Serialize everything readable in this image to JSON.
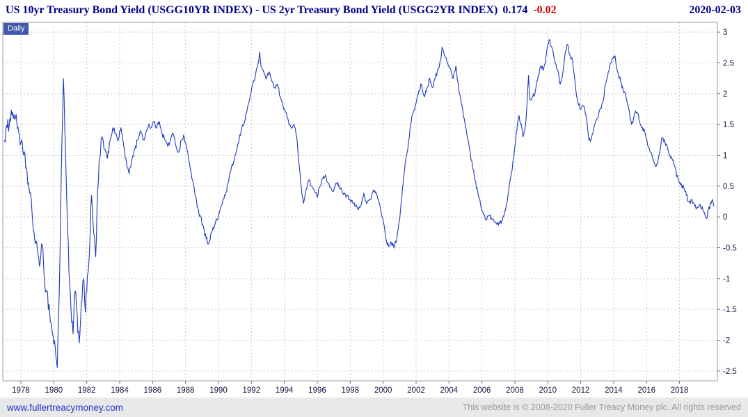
{
  "header": {
    "title": "US 10yr Treasury Bond Yield (USGG10YR INDEX) - US 2yr Treasury Bond Yield (USGG2YR INDEX)",
    "last_value": "0.174",
    "change": "-0.02",
    "date": "2020-02-03"
  },
  "chart": {
    "frequency_label": "Daily"
  },
  "footer": {
    "link": "www.fullertreacymoney.com",
    "copyright": "This website is © 2008-2020 Fuller Treacy Money plc. All rights reserved"
  },
  "colors": {
    "line": "#1c39bb",
    "title": "#00008b",
    "change_negative": "#d40000",
    "grid": "#c9c9c9",
    "axis_text": "#15153f",
    "tick": "#666666",
    "plot_border": "#9aa0a6",
    "badge_bg": "#3d59a8",
    "footer_bg": "#e8e8e8",
    "footer_text": "#9b9b9b",
    "footer_link": "#2233cc"
  },
  "chart_data": {
    "type": "line",
    "title": "US 10yr Treasury Bond Yield (USGG10YR INDEX) - US 2yr Treasury Bond Yield (USGG2YR INDEX)",
    "frequency": "Daily",
    "xlabel": "",
    "ylabel": "",
    "grid": true,
    "legend": "none",
    "x_unit": "year",
    "x_range": [
      1977,
      2020.1
    ],
    "y_range": [
      -2.5,
      3
    ],
    "y_ticks": [
      3,
      2.5,
      2,
      1.5,
      1,
      0.5,
      0,
      -0.5,
      -1,
      -1.5,
      -2,
      -2.5
    ],
    "x_ticks": [
      1978,
      1980,
      1982,
      1984,
      1986,
      1988,
      1990,
      1992,
      1994,
      1996,
      1998,
      2000,
      2002,
      2004,
      2006,
      2008,
      2010,
      2012,
      2014,
      2016,
      2018
    ],
    "last_point": {
      "x": 2020.09,
      "y": 0.174
    },
    "series": [
      {
        "name": "US 10yr minus US 2yr Treasury yield spread",
        "points": [
          [
            1977.0,
            1.25
          ],
          [
            1977.17,
            1.45
          ],
          [
            1977.33,
            1.6
          ],
          [
            1977.5,
            1.7
          ],
          [
            1977.67,
            1.6
          ],
          [
            1977.83,
            1.45
          ],
          [
            1978.0,
            1.2
          ],
          [
            1978.17,
            1.0
          ],
          [
            1978.33,
            0.8
          ],
          [
            1978.5,
            0.45
          ],
          [
            1978.67,
            0.1
          ],
          [
            1978.83,
            -0.35
          ],
          [
            1979.0,
            -0.55
          ],
          [
            1979.17,
            -0.75
          ],
          [
            1979.29,
            -0.45
          ],
          [
            1979.42,
            -1.0
          ],
          [
            1979.58,
            -1.2
          ],
          [
            1979.75,
            -1.55
          ],
          [
            1979.92,
            -1.9
          ],
          [
            1980.08,
            -2.1
          ],
          [
            1980.21,
            -2.45
          ],
          [
            1980.33,
            -1.2
          ],
          [
            1980.46,
            0.8
          ],
          [
            1980.58,
            2.25
          ],
          [
            1980.67,
            1.4
          ],
          [
            1980.79,
            0.2
          ],
          [
            1980.92,
            -0.9
          ],
          [
            1981.04,
            -1.5
          ],
          [
            1981.17,
            -1.9
          ],
          [
            1981.29,
            -1.2
          ],
          [
            1981.42,
            -1.6
          ],
          [
            1981.54,
            -2.05
          ],
          [
            1981.67,
            -1.4
          ],
          [
            1981.79,
            -1.0
          ],
          [
            1981.92,
            -1.55
          ],
          [
            1982.04,
            -0.95
          ],
          [
            1982.17,
            -0.55
          ],
          [
            1982.29,
            0.35
          ],
          [
            1982.42,
            -0.25
          ],
          [
            1982.54,
            -0.65
          ],
          [
            1982.67,
            0.45
          ],
          [
            1982.79,
            0.95
          ],
          [
            1982.92,
            1.3
          ],
          [
            1983.08,
            1.1
          ],
          [
            1983.25,
            0.95
          ],
          [
            1983.42,
            1.25
          ],
          [
            1983.58,
            1.45
          ],
          [
            1983.75,
            1.35
          ],
          [
            1983.92,
            1.25
          ],
          [
            1984.08,
            1.45
          ],
          [
            1984.25,
            1.15
          ],
          [
            1984.42,
            0.85
          ],
          [
            1984.58,
            0.7
          ],
          [
            1984.75,
            0.95
          ],
          [
            1984.92,
            1.1
          ],
          [
            1985.08,
            1.25
          ],
          [
            1985.25,
            1.4
          ],
          [
            1985.42,
            1.25
          ],
          [
            1985.58,
            1.35
          ],
          [
            1985.75,
            1.5
          ],
          [
            1985.92,
            1.45
          ],
          [
            1986.08,
            1.55
          ],
          [
            1986.25,
            1.45
          ],
          [
            1986.42,
            1.55
          ],
          [
            1986.58,
            1.35
          ],
          [
            1986.75,
            1.25
          ],
          [
            1986.92,
            1.15
          ],
          [
            1987.08,
            1.25
          ],
          [
            1987.25,
            1.35
          ],
          [
            1987.42,
            1.15
          ],
          [
            1987.58,
            1.05
          ],
          [
            1987.75,
            1.25
          ],
          [
            1987.92,
            1.3
          ],
          [
            1988.08,
            1.1
          ],
          [
            1988.25,
            0.85
          ],
          [
            1988.42,
            0.6
          ],
          [
            1988.58,
            0.35
          ],
          [
            1988.75,
            0.15
          ],
          [
            1988.92,
            0.0
          ],
          [
            1989.08,
            -0.15
          ],
          [
            1989.25,
            -0.35
          ],
          [
            1989.42,
            -0.42
          ],
          [
            1989.58,
            -0.25
          ],
          [
            1989.75,
            -0.15
          ],
          [
            1989.92,
            -0.05
          ],
          [
            1990.08,
            0.1
          ],
          [
            1990.25,
            0.25
          ],
          [
            1990.42,
            0.35
          ],
          [
            1990.58,
            0.55
          ],
          [
            1990.75,
            0.75
          ],
          [
            1990.92,
            0.9
          ],
          [
            1991.08,
            1.05
          ],
          [
            1991.25,
            1.25
          ],
          [
            1991.42,
            1.45
          ],
          [
            1991.58,
            1.55
          ],
          [
            1991.75,
            1.75
          ],
          [
            1991.92,
            1.95
          ],
          [
            1992.08,
            2.15
          ],
          [
            1992.25,
            2.3
          ],
          [
            1992.42,
            2.5
          ],
          [
            1992.5,
            2.68
          ],
          [
            1992.58,
            2.45
          ],
          [
            1992.75,
            2.35
          ],
          [
            1992.92,
            2.25
          ],
          [
            1993.08,
            2.35
          ],
          [
            1993.25,
            2.2
          ],
          [
            1993.42,
            2.1
          ],
          [
            1993.58,
            2.15
          ],
          [
            1993.75,
            1.95
          ],
          [
            1993.92,
            1.8
          ],
          [
            1994.08,
            1.7
          ],
          [
            1994.25,
            1.55
          ],
          [
            1994.42,
            1.45
          ],
          [
            1994.58,
            1.5
          ],
          [
            1994.75,
            1.3
          ],
          [
            1994.92,
            0.8
          ],
          [
            1995.08,
            0.35
          ],
          [
            1995.17,
            0.22
          ],
          [
            1995.33,
            0.45
          ],
          [
            1995.5,
            0.6
          ],
          [
            1995.67,
            0.5
          ],
          [
            1995.83,
            0.42
          ],
          [
            1996.0,
            0.32
          ],
          [
            1996.17,
            0.5
          ],
          [
            1996.33,
            0.62
          ],
          [
            1996.5,
            0.68
          ],
          [
            1996.67,
            0.55
          ],
          [
            1996.83,
            0.48
          ],
          [
            1997.0,
            0.42
          ],
          [
            1997.17,
            0.55
          ],
          [
            1997.33,
            0.5
          ],
          [
            1997.5,
            0.42
          ],
          [
            1997.67,
            0.38
          ],
          [
            1997.83,
            0.35
          ],
          [
            1998.0,
            0.28
          ],
          [
            1998.17,
            0.22
          ],
          [
            1998.33,
            0.18
          ],
          [
            1998.5,
            0.12
          ],
          [
            1998.67,
            0.2
          ],
          [
            1998.83,
            0.38
          ],
          [
            1999.0,
            0.22
          ],
          [
            1999.17,
            0.28
          ],
          [
            1999.33,
            0.38
          ],
          [
            1999.5,
            0.42
          ],
          [
            1999.67,
            0.3
          ],
          [
            1999.83,
            0.15
          ],
          [
            2000.0,
            -0.05
          ],
          [
            2000.17,
            -0.35
          ],
          [
            2000.33,
            -0.48
          ],
          [
            2000.5,
            -0.42
          ],
          [
            2000.67,
            -0.5
          ],
          [
            2000.83,
            -0.35
          ],
          [
            2001.0,
            -0.05
          ],
          [
            2001.17,
            0.45
          ],
          [
            2001.33,
            0.85
          ],
          [
            2001.5,
            1.1
          ],
          [
            2001.67,
            1.5
          ],
          [
            2001.83,
            1.7
          ],
          [
            2002.0,
            1.85
          ],
          [
            2002.17,
            2.05
          ],
          [
            2002.33,
            2.15
          ],
          [
            2002.5,
            1.95
          ],
          [
            2002.67,
            2.1
          ],
          [
            2002.83,
            2.25
          ],
          [
            2003.0,
            2.1
          ],
          [
            2003.17,
            2.25
          ],
          [
            2003.33,
            2.4
          ],
          [
            2003.5,
            2.55
          ],
          [
            2003.58,
            2.75
          ],
          [
            2003.75,
            2.6
          ],
          [
            2003.92,
            2.5
          ],
          [
            2004.08,
            2.4
          ],
          [
            2004.25,
            2.25
          ],
          [
            2004.42,
            2.45
          ],
          [
            2004.58,
            2.1
          ],
          [
            2004.75,
            1.85
          ],
          [
            2004.92,
            1.6
          ],
          [
            2005.08,
            1.35
          ],
          [
            2005.25,
            1.1
          ],
          [
            2005.42,
            0.85
          ],
          [
            2005.58,
            0.6
          ],
          [
            2005.75,
            0.4
          ],
          [
            2005.92,
            0.2
          ],
          [
            2006.08,
            0.05
          ],
          [
            2006.25,
            -0.05
          ],
          [
            2006.42,
            0.02
          ],
          [
            2006.58,
            -0.02
          ],
          [
            2006.75,
            -0.08
          ],
          [
            2006.92,
            -0.12
          ],
          [
            2007.08,
            -0.1
          ],
          [
            2007.25,
            -0.05
          ],
          [
            2007.42,
            0.1
          ],
          [
            2007.58,
            0.35
          ],
          [
            2007.75,
            0.65
          ],
          [
            2007.92,
            0.95
          ],
          [
            2008.08,
            1.35
          ],
          [
            2008.25,
            1.65
          ],
          [
            2008.42,
            1.45
          ],
          [
            2008.5,
            1.3
          ],
          [
            2008.67,
            1.55
          ],
          [
            2008.83,
            2.3
          ],
          [
            2008.92,
            1.9
          ],
          [
            2009.08,
            1.95
          ],
          [
            2009.25,
            2.05
          ],
          [
            2009.42,
            2.3
          ],
          [
            2009.58,
            2.45
          ],
          [
            2009.75,
            2.4
          ],
          [
            2009.92,
            2.65
          ],
          [
            2010.0,
            2.8
          ],
          [
            2010.08,
            2.88
          ],
          [
            2010.25,
            2.75
          ],
          [
            2010.42,
            2.55
          ],
          [
            2010.58,
            2.4
          ],
          [
            2010.75,
            2.15
          ],
          [
            2010.92,
            2.35
          ],
          [
            2011.08,
            2.7
          ],
          [
            2011.17,
            2.8
          ],
          [
            2011.33,
            2.65
          ],
          [
            2011.5,
            2.55
          ],
          [
            2011.67,
            2.15
          ],
          [
            2011.83,
            1.85
          ],
          [
            2012.0,
            1.75
          ],
          [
            2012.17,
            1.8
          ],
          [
            2012.33,
            1.65
          ],
          [
            2012.5,
            1.25
          ],
          [
            2012.67,
            1.3
          ],
          [
            2012.83,
            1.5
          ],
          [
            2013.0,
            1.6
          ],
          [
            2013.17,
            1.75
          ],
          [
            2013.33,
            1.85
          ],
          [
            2013.5,
            2.15
          ],
          [
            2013.67,
            2.35
          ],
          [
            2013.83,
            2.5
          ],
          [
            2014.0,
            2.6
          ],
          [
            2014.08,
            2.62
          ],
          [
            2014.25,
            2.35
          ],
          [
            2014.42,
            2.2
          ],
          [
            2014.58,
            2.05
          ],
          [
            2014.75,
            1.95
          ],
          [
            2014.92,
            1.75
          ],
          [
            2015.08,
            1.5
          ],
          [
            2015.25,
            1.65
          ],
          [
            2015.42,
            1.7
          ],
          [
            2015.58,
            1.55
          ],
          [
            2015.75,
            1.45
          ],
          [
            2015.92,
            1.35
          ],
          [
            2016.08,
            1.15
          ],
          [
            2016.25,
            1.05
          ],
          [
            2016.42,
            0.92
          ],
          [
            2016.58,
            0.82
          ],
          [
            2016.75,
            1.0
          ],
          [
            2016.92,
            1.28
          ],
          [
            2017.08,
            1.25
          ],
          [
            2017.25,
            1.15
          ],
          [
            2017.42,
            1.0
          ],
          [
            2017.58,
            0.92
          ],
          [
            2017.75,
            0.8
          ],
          [
            2017.92,
            0.6
          ],
          [
            2018.08,
            0.55
          ],
          [
            2018.25,
            0.48
          ],
          [
            2018.42,
            0.35
          ],
          [
            2018.58,
            0.25
          ],
          [
            2018.75,
            0.28
          ],
          [
            2018.92,
            0.18
          ],
          [
            2019.08,
            0.16
          ],
          [
            2019.25,
            0.2
          ],
          [
            2019.42,
            0.12
          ],
          [
            2019.58,
            0.0
          ],
          [
            2019.67,
            -0.02
          ],
          [
            2019.75,
            0.12
          ],
          [
            2019.92,
            0.22
          ],
          [
            2020.0,
            0.28
          ],
          [
            2020.09,
            0.174
          ]
        ]
      }
    ]
  }
}
